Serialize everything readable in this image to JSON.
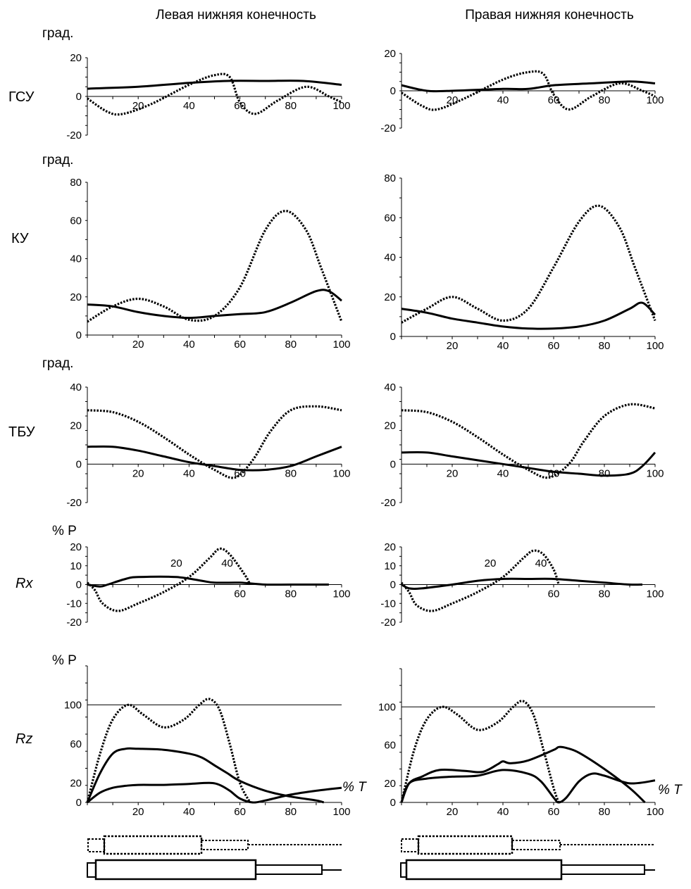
{
  "columns": [
    {
      "title": "Левая нижняя конечность"
    },
    {
      "title": "Правая нижняя конечность"
    }
  ],
  "labels": {
    "deg_unit": "град.",
    "force_unit": "% P",
    "time_unit": "% T",
    "row_gsu": "ГСУ",
    "row_ku": "КУ",
    "row_tbu": "ТБУ",
    "row_rx": "Rx",
    "row_rz": "Rz"
  },
  "chart_data": [
    {
      "type": "line",
      "id": "gsu-left",
      "title": "ГСУ",
      "ylabel": "град.",
      "xlabel": "",
      "xlim": [
        0,
        100
      ],
      "ylim": [
        -20,
        20
      ],
      "xticks": [
        20,
        40,
        60,
        80,
        100
      ],
      "yticks": [
        20,
        0,
        -20
      ],
      "series": [
        {
          "name": "solid",
          "style": "solid",
          "x": [
            0,
            20,
            40,
            55,
            70,
            85,
            100
          ],
          "y": [
            4,
            5,
            7,
            8,
            8,
            8,
            6
          ]
        },
        {
          "name": "dotted",
          "style": "dotted",
          "x": [
            0,
            8,
            14,
            25,
            40,
            50,
            56,
            60,
            66,
            75,
            86,
            95,
            100
          ],
          "y": [
            -1,
            -8,
            -9,
            -4,
            6,
            11,
            10,
            -3,
            -9,
            -2,
            5,
            0,
            -3
          ]
        }
      ]
    },
    {
      "type": "line",
      "id": "gsu-right",
      "title": "ГСУ",
      "ylabel": "",
      "xlabel": "",
      "xlim": [
        0,
        100
      ],
      "ylim": [
        -20,
        20
      ],
      "xticks": [
        20,
        40,
        60,
        80,
        100
      ],
      "yticks": [
        20,
        0,
        -20
      ],
      "series": [
        {
          "name": "solid",
          "style": "solid",
          "x": [
            0,
            10,
            20,
            40,
            50,
            60,
            75,
            90,
            100
          ],
          "y": [
            3,
            0,
            0,
            1,
            1,
            3,
            4,
            5,
            4
          ]
        },
        {
          "name": "dotted",
          "style": "dotted",
          "x": [
            0,
            8,
            14,
            25,
            40,
            50,
            56,
            60,
            66,
            75,
            86,
            95,
            100
          ],
          "y": [
            -1,
            -8,
            -10,
            -4,
            6,
            10,
            9,
            -2,
            -10,
            -3,
            4,
            0,
            -3
          ]
        }
      ]
    },
    {
      "type": "line",
      "id": "ku-left",
      "title": "КУ",
      "ylabel": "град.",
      "xlabel": "",
      "xlim": [
        0,
        100
      ],
      "ylim": [
        0,
        80
      ],
      "xticks": [
        20,
        40,
        60,
        80,
        100
      ],
      "yticks": [
        80,
        60,
        40,
        20,
        0
      ],
      "series": [
        {
          "name": "solid",
          "style": "solid",
          "x": [
            0,
            10,
            20,
            30,
            40,
            50,
            60,
            70,
            80,
            90,
            95,
            100
          ],
          "y": [
            16,
            15,
            12,
            10,
            9,
            10,
            11,
            12,
            17,
            23,
            23,
            18
          ]
        },
        {
          "name": "dotted",
          "style": "dotted",
          "x": [
            0,
            10,
            20,
            30,
            40,
            50,
            60,
            70,
            78,
            86,
            92,
            100
          ],
          "y": [
            7,
            15,
            19,
            15,
            8,
            10,
            25,
            55,
            65,
            55,
            35,
            7
          ]
        }
      ]
    },
    {
      "type": "line",
      "id": "ku-right",
      "title": "КУ",
      "ylabel": "",
      "xlabel": "",
      "xlim": [
        0,
        100
      ],
      "ylim": [
        0,
        80
      ],
      "xticks": [
        20,
        40,
        60,
        80,
        100
      ],
      "yticks": [
        80,
        60,
        40,
        20,
        0
      ],
      "series": [
        {
          "name": "solid",
          "style": "solid",
          "x": [
            0,
            10,
            20,
            30,
            40,
            50,
            60,
            70,
            80,
            90,
            95,
            100
          ],
          "y": [
            14,
            12,
            9,
            7,
            5,
            4,
            4,
            5,
            8,
            14,
            17,
            11
          ]
        },
        {
          "name": "dotted",
          "style": "dotted",
          "x": [
            0,
            10,
            20,
            30,
            40,
            50,
            60,
            70,
            78,
            86,
            92,
            100
          ],
          "y": [
            7,
            14,
            20,
            14,
            8,
            14,
            35,
            58,
            66,
            55,
            35,
            8
          ]
        }
      ]
    },
    {
      "type": "line",
      "id": "tbu-left",
      "title": "ТБУ",
      "ylabel": "град.",
      "xlabel": "",
      "xlim": [
        0,
        100
      ],
      "ylim": [
        -20,
        40
      ],
      "xticks": [
        20,
        40,
        60,
        80,
        100
      ],
      "yticks": [
        40,
        20,
        0,
        -20
      ],
      "series": [
        {
          "name": "solid",
          "style": "solid",
          "x": [
            0,
            10,
            20,
            30,
            40,
            50,
            60,
            70,
            80,
            90,
            100
          ],
          "y": [
            9,
            9,
            7,
            4,
            1,
            -1,
            -3,
            -3,
            -1,
            4,
            9
          ]
        },
        {
          "name": "dotted",
          "style": "dotted",
          "x": [
            0,
            10,
            20,
            30,
            40,
            50,
            58,
            65,
            72,
            80,
            90,
            100
          ],
          "y": [
            28,
            27,
            22,
            14,
            5,
            -3,
            -7,
            2,
            17,
            28,
            30,
            28
          ]
        }
      ]
    },
    {
      "type": "line",
      "id": "tbu-right",
      "title": "ТБУ",
      "ylabel": "",
      "xlabel": "",
      "xlim": [
        0,
        100
      ],
      "ylim": [
        -20,
        40
      ],
      "xticks": [
        20,
        40,
        60,
        80,
        100
      ],
      "yticks": [
        40,
        20,
        0,
        -20
      ],
      "series": [
        {
          "name": "solid",
          "style": "solid",
          "x": [
            0,
            10,
            20,
            30,
            40,
            50,
            60,
            70,
            80,
            90,
            95,
            100
          ],
          "y": [
            6,
            6,
            4,
            2,
            0,
            -2,
            -4,
            -5,
            -6,
            -5,
            -1,
            6
          ]
        },
        {
          "name": "dotted",
          "style": "dotted",
          "x": [
            0,
            10,
            20,
            30,
            40,
            50,
            58,
            66,
            72,
            80,
            90,
            100
          ],
          "y": [
            28,
            27,
            22,
            14,
            5,
            -3,
            -7,
            0,
            12,
            25,
            31,
            29
          ]
        }
      ]
    },
    {
      "type": "line",
      "id": "rx-left",
      "title": "Rx",
      "ylabel": "% P",
      "xlabel": "",
      "xlim": [
        0,
        100
      ],
      "ylim": [
        -20,
        20
      ],
      "xticks": [
        60,
        80,
        100
      ],
      "upper_xticks": [
        20,
        40
      ],
      "yticks": [
        20,
        10,
        0,
        -10,
        -20
      ],
      "series": [
        {
          "name": "solid",
          "style": "solid",
          "x": [
            0,
            5,
            8,
            15,
            20,
            35,
            45,
            50,
            60,
            70,
            80,
            95
          ],
          "y": [
            0,
            -1,
            0,
            3,
            4,
            4,
            2,
            1,
            1,
            0,
            0,
            0
          ]
        },
        {
          "name": "dotted",
          "style": "dotted",
          "x": [
            0,
            3,
            6,
            12,
            20,
            30,
            40,
            48,
            52,
            56,
            62,
            64
          ],
          "y": [
            1,
            -3,
            -10,
            -14,
            -10,
            -4,
            4,
            14,
            19,
            16,
            5,
            0
          ]
        }
      ]
    },
    {
      "type": "line",
      "id": "rx-right",
      "title": "Rx",
      "ylabel": "",
      "xlabel": "",
      "xlim": [
        0,
        100
      ],
      "ylim": [
        -20,
        20
      ],
      "xticks": [
        60,
        80,
        100
      ],
      "upper_xticks": [
        20,
        40
      ],
      "yticks": [
        20,
        10,
        0,
        -10,
        -20
      ],
      "series": [
        {
          "name": "solid",
          "style": "solid",
          "x": [
            0,
            3,
            8,
            20,
            30,
            40,
            50,
            60,
            70,
            80,
            90,
            95
          ],
          "y": [
            0,
            -2,
            -2,
            0,
            2,
            3,
            3,
            3,
            2,
            1,
            0,
            0
          ]
        },
        {
          "name": "dotted",
          "style": "dotted",
          "x": [
            0,
            3,
            6,
            12,
            20,
            30,
            40,
            48,
            52,
            56,
            60,
            62
          ],
          "y": [
            1,
            -4,
            -11,
            -14,
            -10,
            -4,
            4,
            14,
            18,
            16,
            8,
            0
          ]
        }
      ]
    },
    {
      "type": "line",
      "id": "rz-left",
      "title": "Rz",
      "ylabel": "% P",
      "xlabel": "% T",
      "xlim": [
        0,
        100
      ],
      "ylim": [
        0,
        140
      ],
      "reference_line": 100,
      "xticks": [
        20,
        40,
        60,
        80,
        100
      ],
      "yticks": [
        100,
        60,
        20,
        0
      ],
      "series": [
        {
          "name": "dotted",
          "style": "dotted",
          "x": [
            0,
            5,
            10,
            16,
            22,
            30,
            38,
            44,
            48,
            52,
            56,
            60,
            64
          ],
          "y": [
            0,
            50,
            85,
            100,
            90,
            77,
            85,
            100,
            106,
            95,
            60,
            20,
            0
          ]
        },
        {
          "name": "solid-1",
          "style": "solid",
          "x": [
            0,
            5,
            10,
            15,
            20,
            30,
            40,
            45,
            50,
            55,
            60,
            70,
            80,
            90,
            93
          ],
          "y": [
            0,
            30,
            50,
            55,
            55,
            54,
            50,
            46,
            38,
            30,
            22,
            12,
            6,
            2,
            0
          ]
        },
        {
          "name": "solid-2",
          "style": "solid",
          "x": [
            0,
            5,
            10,
            15,
            20,
            30,
            40,
            48,
            52,
            56,
            60,
            65,
            70,
            80,
            90,
            100
          ],
          "y": [
            0,
            10,
            15,
            17,
            18,
            18,
            19,
            20,
            18,
            12,
            4,
            0,
            2,
            8,
            12,
            15
          ]
        }
      ]
    },
    {
      "type": "line",
      "id": "rz-right",
      "title": "Rz",
      "ylabel": "",
      "xlabel": "% T",
      "xlim": [
        0,
        100
      ],
      "ylim": [
        0,
        140
      ],
      "reference_line": 100,
      "xticks": [
        20,
        40,
        60,
        80,
        100
      ],
      "yticks": [
        100,
        60,
        20,
        0
      ],
      "series": [
        {
          "name": "dotted",
          "style": "dotted",
          "x": [
            0,
            5,
            10,
            16,
            22,
            30,
            38,
            44,
            48,
            52,
            56,
            60,
            62
          ],
          "y": [
            0,
            55,
            87,
            100,
            92,
            76,
            84,
            100,
            106,
            92,
            55,
            15,
            0
          ]
        },
        {
          "name": "solid-1",
          "style": "solid",
          "x": [
            0,
            3,
            8,
            15,
            25,
            32,
            38,
            40,
            43,
            50,
            60,
            62,
            65,
            70,
            80,
            90,
            96
          ],
          "y": [
            0,
            20,
            27,
            34,
            33,
            32,
            40,
            43,
            41,
            44,
            55,
            58,
            57,
            52,
            35,
            15,
            0
          ]
        },
        {
          "name": "solid-2",
          "style": "solid",
          "x": [
            0,
            3,
            10,
            20,
            30,
            40,
            50,
            55,
            60,
            62,
            65,
            70,
            75,
            80,
            90,
            100
          ],
          "y": [
            0,
            20,
            25,
            27,
            28,
            34,
            30,
            22,
            5,
            0,
            5,
            22,
            30,
            28,
            20,
            23
          ]
        }
      ]
    }
  ]
}
